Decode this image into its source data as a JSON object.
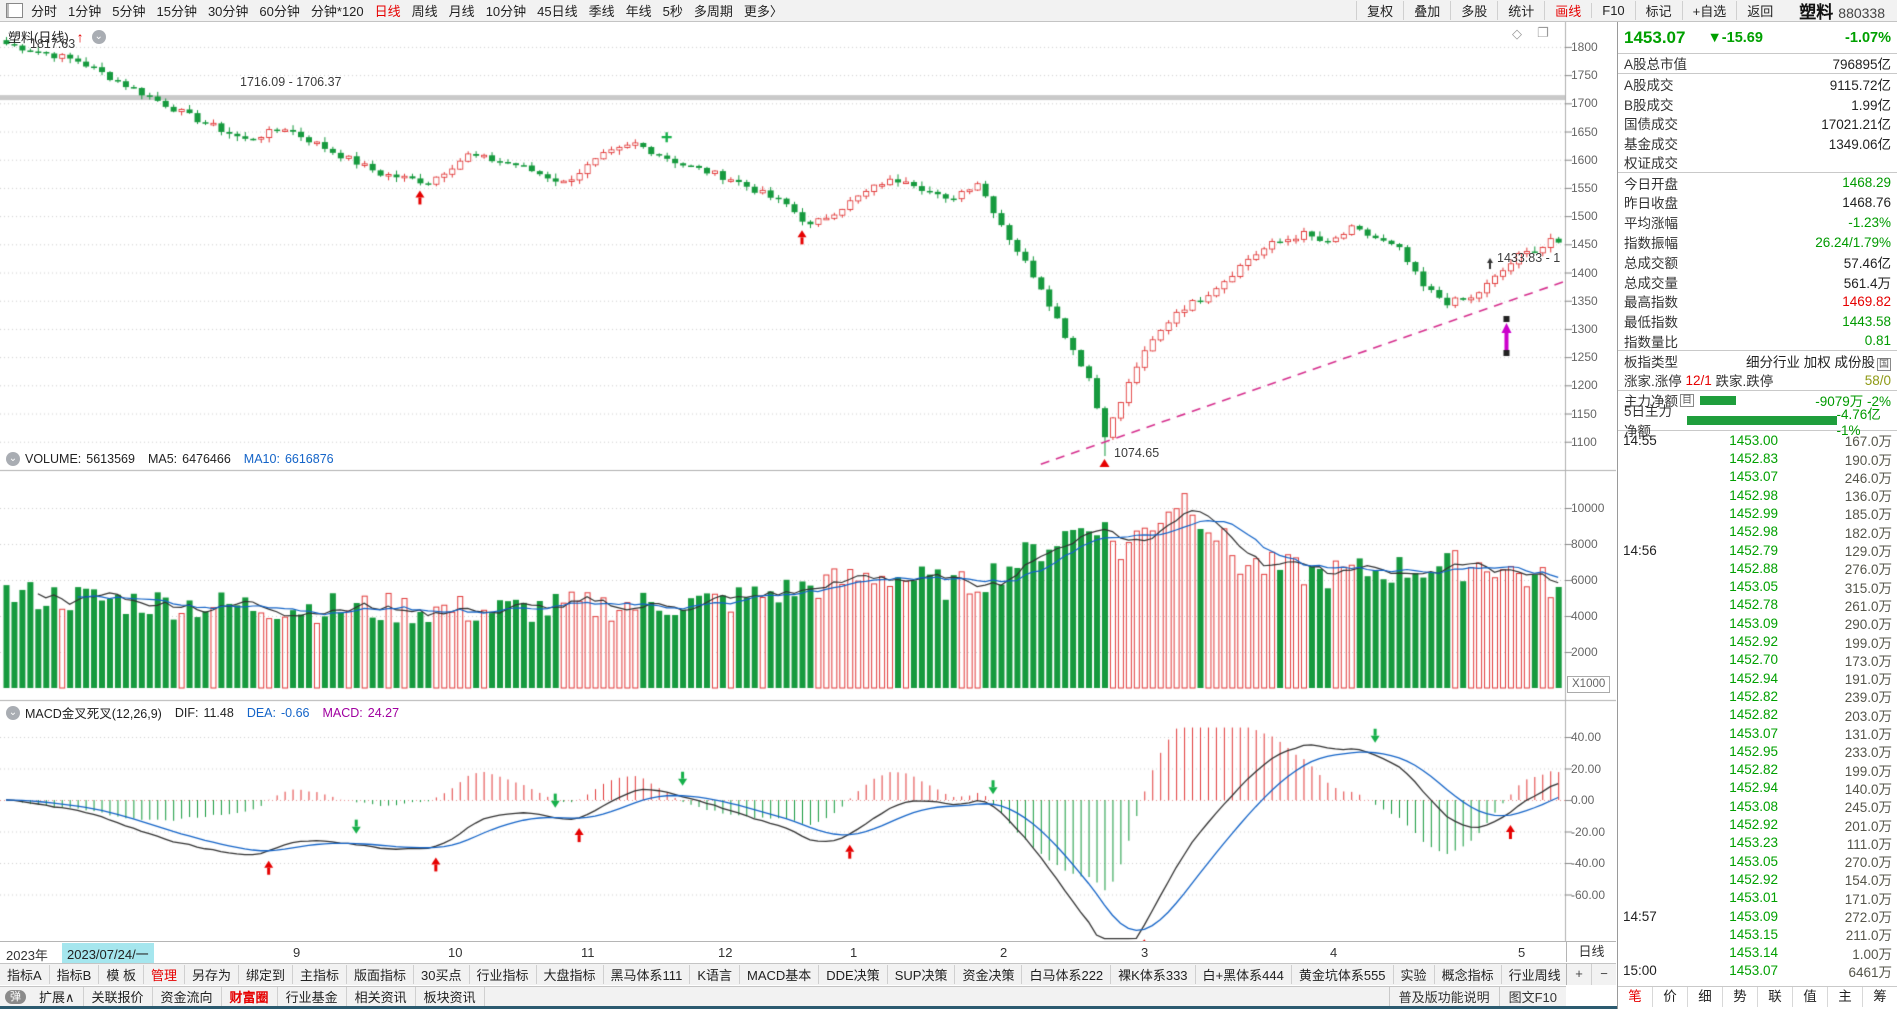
{
  "toolbar_top": {
    "periods": [
      "分时",
      "1分钟",
      "5分钟",
      "15分钟",
      "30分钟",
      "60分钟",
      "分钟*120",
      "日线",
      "周线",
      "月线",
      "10分钟",
      "45日线",
      "季线",
      "年线",
      "5秒",
      "多周期",
      "更多〉"
    ],
    "active_period": "日线",
    "right_buttons": [
      "复权",
      "叠加",
      "多股",
      "统计",
      "画线",
      "F10",
      "标记",
      "+自选",
      "返回"
    ],
    "active_right": "画线"
  },
  "symbol": {
    "name": "塑料",
    "code": "880338",
    "pane_title": "塑料(日线)"
  },
  "quote": {
    "price": "1453.07",
    "change": "▼-15.69",
    "pct": "-1.07%"
  },
  "stats": [
    {
      "label": "A股总市值",
      "value": "796895亿",
      "c": "k",
      "div": true
    },
    {
      "label": "A股成交",
      "value": "9115.72亿",
      "c": "k"
    },
    {
      "label": "B股成交",
      "value": "1.99亿",
      "c": "k"
    },
    {
      "label": "国债成交",
      "value": "17021.21亿",
      "c": "k"
    },
    {
      "label": "基金成交",
      "value": "1349.06亿",
      "c": "k"
    },
    {
      "label": "权证成交",
      "value": "",
      "c": "k",
      "div": true
    },
    {
      "label": "今日开盘",
      "value": "1468.29",
      "c": "g"
    },
    {
      "label": "昨日收盘",
      "value": "1468.76",
      "c": "k"
    },
    {
      "label": "平均涨幅",
      "value": "-1.23%",
      "c": "g"
    },
    {
      "label": "指数振幅",
      "value": "26.24/1.79%",
      "c": "g"
    },
    {
      "label": "总成交额",
      "value": "57.46亿",
      "c": "k"
    },
    {
      "label": "总成交量",
      "value": "561.4万",
      "c": "k"
    },
    {
      "label": "最高指数",
      "value": "1469.82",
      "c": "r"
    },
    {
      "label": "最低指数",
      "value": "1443.58",
      "c": "g"
    },
    {
      "label": "指数量比",
      "value": "0.81",
      "c": "g",
      "div": true
    },
    {
      "label": "板指类型",
      "value": "细分行业 加权 成份股",
      "icon": "国",
      "c": "k"
    }
  ],
  "updown": {
    "l1": "涨家.涨停",
    "v1": "12/1",
    "l2": "跌家.跌停",
    "v2": "58/0"
  },
  "main_force": [
    {
      "label": "主力净额",
      "icon": "目",
      "bar": 36,
      "value": "-9079万",
      "pct": "-2%"
    },
    {
      "label": "5日主力净额",
      "bar": 198,
      "value": "-4.76亿",
      "pct": "-1%"
    }
  ],
  "ticks": [
    {
      "t": "14:55",
      "p": "1453.00",
      "v": "167.0万"
    },
    {
      "t": "",
      "p": "1452.83",
      "v": "190.0万"
    },
    {
      "t": "",
      "p": "1453.07",
      "v": "246.0万"
    },
    {
      "t": "",
      "p": "1452.98",
      "v": "136.0万"
    },
    {
      "t": "",
      "p": "1452.99",
      "v": "185.0万"
    },
    {
      "t": "",
      "p": "1452.98",
      "v": "182.0万"
    },
    {
      "t": "14:56",
      "p": "1452.79",
      "v": "129.0万"
    },
    {
      "t": "",
      "p": "1452.88",
      "v": "276.0万"
    },
    {
      "t": "",
      "p": "1453.05",
      "v": "315.0万"
    },
    {
      "t": "",
      "p": "1452.78",
      "v": "261.0万"
    },
    {
      "t": "",
      "p": "1453.09",
      "v": "290.0万"
    },
    {
      "t": "",
      "p": "1452.92",
      "v": "199.0万"
    },
    {
      "t": "",
      "p": "1452.70",
      "v": "173.0万"
    },
    {
      "t": "",
      "p": "1452.94",
      "v": "191.0万"
    },
    {
      "t": "",
      "p": "1452.82",
      "v": "239.0万"
    },
    {
      "t": "",
      "p": "1452.82",
      "v": "203.0万"
    },
    {
      "t": "",
      "p": "1453.07",
      "v": "131.0万"
    },
    {
      "t": "",
      "p": "1452.95",
      "v": "233.0万"
    },
    {
      "t": "",
      "p": "1452.82",
      "v": "199.0万"
    },
    {
      "t": "",
      "p": "1452.94",
      "v": "140.0万"
    },
    {
      "t": "",
      "p": "1453.08",
      "v": "245.0万"
    },
    {
      "t": "",
      "p": "1452.92",
      "v": "201.0万"
    },
    {
      "t": "",
      "p": "1453.23",
      "v": "111.0万"
    },
    {
      "t": "",
      "p": "1453.05",
      "v": "270.0万"
    },
    {
      "t": "",
      "p": "1452.92",
      "v": "154.0万"
    },
    {
      "t": "",
      "p": "1453.01",
      "v": "171.0万"
    },
    {
      "t": "14:57",
      "p": "1453.09",
      "v": "272.0万"
    },
    {
      "t": "",
      "p": "1453.15",
      "v": "211.0万"
    },
    {
      "t": "",
      "p": "1453.14",
      "v": "1.00万"
    },
    {
      "t": "15:00",
      "p": "1453.07",
      "v": "6461万"
    }
  ],
  "right_tabs": [
    "笔",
    "价",
    "细",
    "势",
    "联",
    "值",
    "主",
    "筹"
  ],
  "active_right_tab": "笔",
  "volume_header": {
    "name": "VOLUME:",
    "value": "5613569",
    "ma5_label": "MA5:",
    "ma5": "6476466",
    "ma10_label": "MA10:",
    "ma10": "6616876"
  },
  "macd_header": {
    "name": "MACD金叉死叉(12,26,9)",
    "dif_label": "DIF:",
    "dif": "11.48",
    "dea_label": "DEA:",
    "dea": "-0.66",
    "macd_label": "MACD:",
    "macd": "24.27"
  },
  "annotations": {
    "high": "1817.63",
    "band": "1716.09 - 1706.37",
    "mid": "1433.83 - 1",
    "low": "1074.65"
  },
  "axes": {
    "price_ticks": [
      "1800",
      "1750",
      "1700",
      "1650",
      "1600",
      "1550",
      "1500",
      "1450",
      "1400",
      "1350",
      "1300",
      "1250",
      "1200",
      "1150",
      "1100"
    ],
    "volume_ticks": [
      "10000",
      "8000",
      "6000",
      "4000",
      "2000"
    ],
    "volume_unit": "X1000",
    "macd_ticks": [
      "40.00",
      "20.00",
      "0.00",
      "-20.00",
      "-40.00",
      "-60.00"
    ],
    "year": "2023年",
    "selected_date": "2023/07/24/一",
    "months": [
      [
        "9",
        0.187
      ],
      [
        "10",
        0.286
      ],
      [
        "11",
        0.371
      ],
      [
        "12",
        0.459
      ],
      [
        "1",
        0.543
      ],
      [
        "2",
        0.639
      ],
      [
        "3",
        0.729
      ],
      [
        "4",
        0.85
      ],
      [
        "5",
        0.97
      ]
    ]
  },
  "footer": {
    "help": "普及版功能说明",
    "f10": "图文F10",
    "period_label": "日线",
    "plus": "+",
    "minus": "−"
  },
  "indicator_bar": [
    "指标A",
    "指标B",
    "模 板",
    "管理",
    "另存为",
    "绑定到",
    "主指标",
    "版面指标",
    "30买点",
    "行业指标",
    "大盘指标",
    "黑马体系111",
    "K语言",
    "MACD基本",
    "DDE决策",
    "SUP决策",
    "资金决策",
    "白马体系222",
    "裸K体系333",
    "白+黑体系444",
    "黄金坑体系555",
    "实验",
    "概念指标",
    "行业周线"
  ],
  "indicator_active": "管理",
  "quick_bar": {
    "badge": "弹",
    "items": [
      "扩展∧",
      "关联报价",
      "资金流向",
      "财富圈",
      "行业基金",
      "相关资讯",
      "板块资讯"
    ],
    "active": "财富圈"
  },
  "chart_data": {
    "type": "candlestick",
    "panes": [
      "price",
      "volume",
      "macd"
    ],
    "n_candles": 196,
    "close_anchors": [
      [
        0,
        1805
      ],
      [
        9,
        1775
      ],
      [
        15,
        1732
      ],
      [
        23,
        1677
      ],
      [
        30,
        1635
      ],
      [
        35,
        1656
      ],
      [
        41,
        1614
      ],
      [
        47,
        1575
      ],
      [
        53,
        1560
      ],
      [
        58,
        1608
      ],
      [
        64,
        1591
      ],
      [
        70,
        1559
      ],
      [
        75,
        1607
      ],
      [
        79,
        1628
      ],
      [
        85,
        1591
      ],
      [
        91,
        1566
      ],
      [
        98,
        1520
      ],
      [
        101,
        1482
      ],
      [
        105,
        1516
      ],
      [
        110,
        1559
      ],
      [
        113,
        1566
      ],
      [
        118,
        1527
      ],
      [
        122,
        1560
      ],
      [
        126,
        1461
      ],
      [
        130,
        1374
      ],
      [
        133,
        1289
      ],
      [
        136,
        1213
      ],
      [
        138,
        1108
      ],
      [
        140,
        1170
      ],
      [
        142,
        1234
      ],
      [
        144,
        1278
      ],
      [
        147,
        1331
      ],
      [
        150,
        1353
      ],
      [
        153,
        1386
      ],
      [
        156,
        1424
      ],
      [
        159,
        1450
      ],
      [
        163,
        1468
      ],
      [
        166,
        1450
      ],
      [
        169,
        1477
      ],
      [
        172,
        1461
      ],
      [
        175,
        1440
      ],
      [
        178,
        1374
      ],
      [
        181,
        1347
      ],
      [
        184,
        1353
      ],
      [
        187,
        1390
      ],
      [
        190,
        1429
      ],
      [
        193,
        1446
      ],
      [
        194,
        1460
      ],
      [
        195,
        1453.07
      ]
    ],
    "first_high": 1817.63,
    "crash_low": 1074.65,
    "crash_index": 138,
    "last_close": 1453.07,
    "prev_close": 1468.76,
    "price_axis": {
      "min": 1050,
      "max": 1830
    },
    "volume_axis": {
      "max": 10900,
      "unit": "X1000"
    },
    "volume_profile": [
      [
        0,
        5200
      ],
      [
        25,
        4600
      ],
      [
        60,
        4300
      ],
      [
        90,
        4800
      ],
      [
        110,
        6300
      ],
      [
        120,
        5600
      ],
      [
        126,
        6800
      ],
      [
        133,
        8500
      ],
      [
        137,
        9300
      ],
      [
        140,
        7600
      ],
      [
        148,
        10800
      ],
      [
        155,
        6900
      ],
      [
        165,
        6300
      ],
      [
        175,
        6600
      ],
      [
        186,
        6900
      ],
      [
        195,
        5613
      ]
    ],
    "band_price": 1711,
    "trendline": {
      "i1": 130,
      "p1": 1060,
      "i2": 196,
      "p2": 1385
    },
    "markers": {
      "main_up_arrows": [
        52,
        100
      ],
      "main_plus": [
        83
      ],
      "purple_arrow_index": 188,
      "crash_triangle_index": 138
    }
  }
}
